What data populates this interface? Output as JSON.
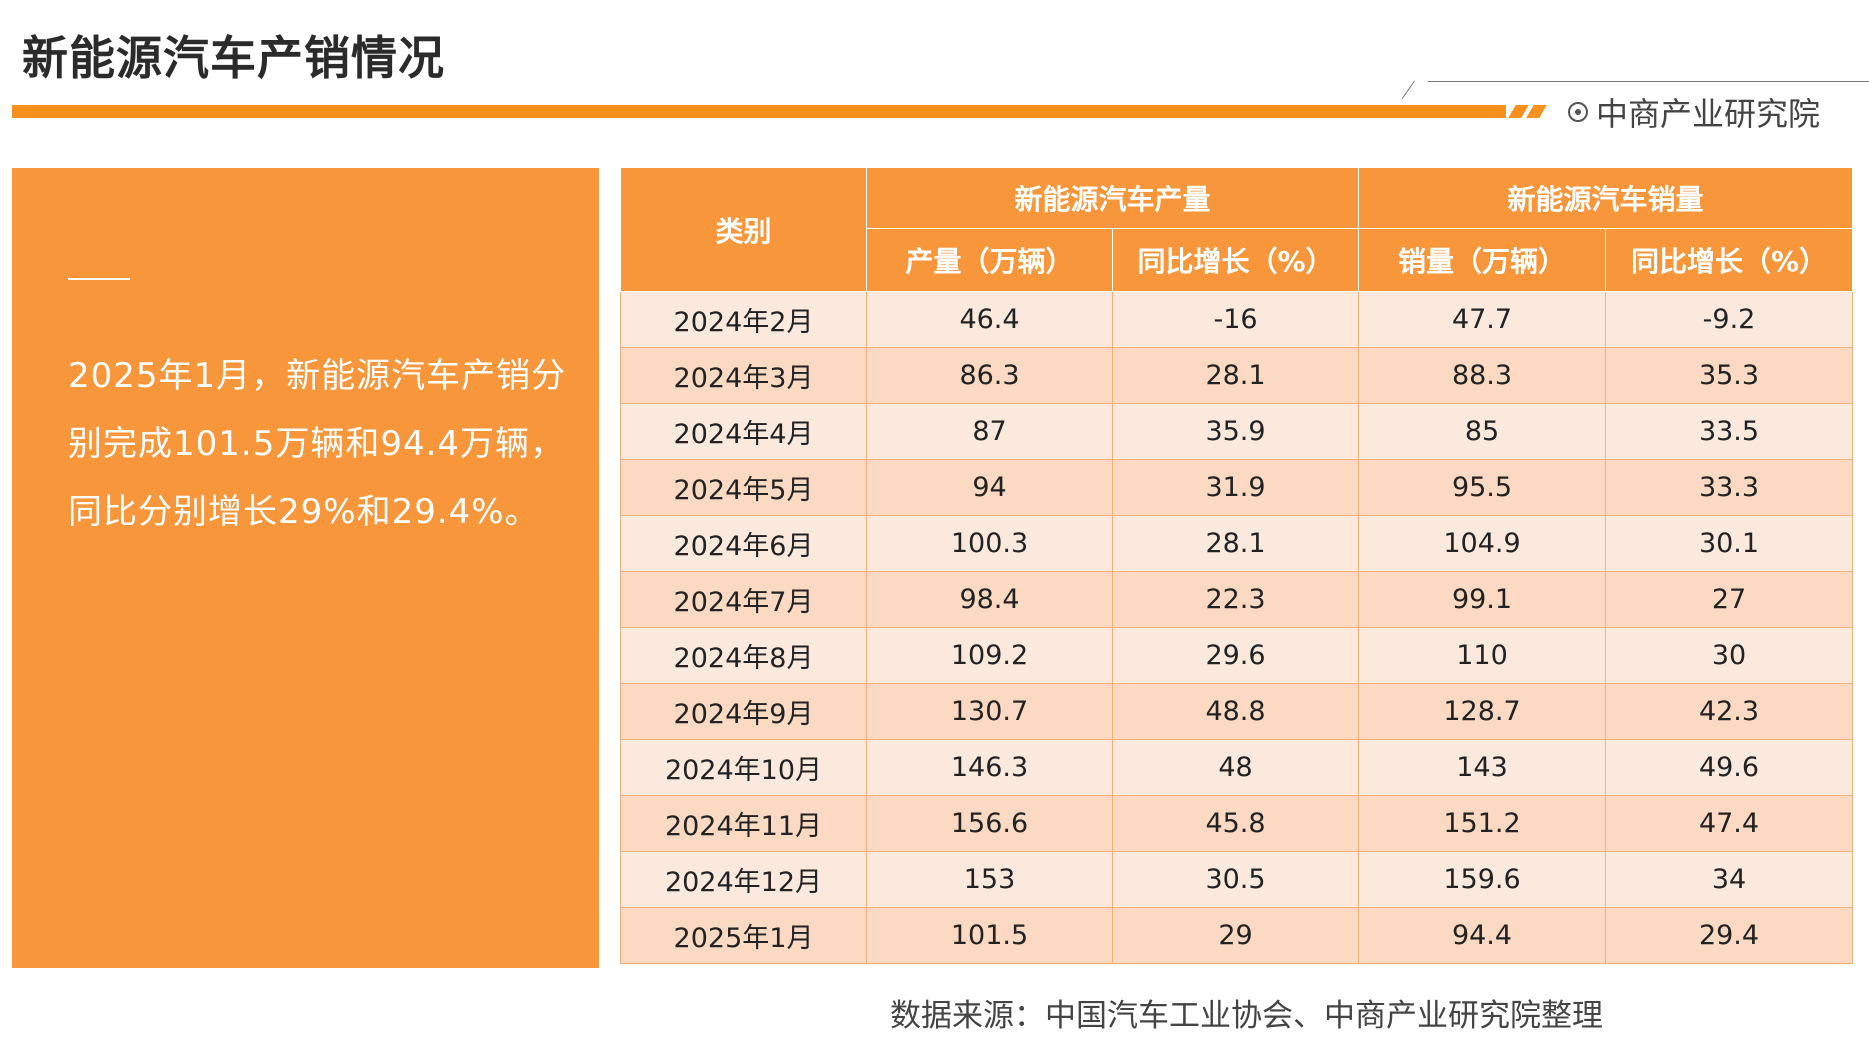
{
  "title": "新能源汽车产销情况",
  "brand": {
    "name": "中商产业研究院",
    "icon": "circle-dot-icon"
  },
  "colors": {
    "accent": "#f7911e",
    "panel": "#f7963a",
    "row_light": "#fce9de",
    "row_dark": "#fbd9c2"
  },
  "summary": "2025年1月，新能源汽车产销分别完成101.5万辆和94.4万辆，同比分别增长29%和29.4%。",
  "table": {
    "category_header": "类别",
    "production_header": "新能源汽车产量",
    "sales_header": "新能源汽车销量",
    "sub_headers": [
      "产量（万辆）",
      "同比增长（%）",
      "销量（万辆）",
      "同比增长（%）"
    ],
    "rows": [
      [
        "2024年2月",
        "46.4",
        "-16",
        "47.7",
        "-9.2"
      ],
      [
        "2024年3月",
        "86.3",
        "28.1",
        "88.3",
        "35.3"
      ],
      [
        "2024年4月",
        "87",
        "35.9",
        "85",
        "33.5"
      ],
      [
        "2024年5月",
        "94",
        "31.9",
        "95.5",
        "33.3"
      ],
      [
        "2024年6月",
        "100.3",
        "28.1",
        "104.9",
        "30.1"
      ],
      [
        "2024年7月",
        "98.4",
        "22.3",
        "99.1",
        "27"
      ],
      [
        "2024年8月",
        "109.2",
        "29.6",
        "110",
        "30"
      ],
      [
        "2024年9月",
        "130.7",
        "48.8",
        "128.7",
        "42.3"
      ],
      [
        "2024年10月",
        "146.3",
        "48",
        "143",
        "49.6"
      ],
      [
        "2024年11月",
        "156.6",
        "45.8",
        "151.2",
        "47.4"
      ],
      [
        "2024年12月",
        "153",
        "30.5",
        "159.6",
        "34"
      ],
      [
        "2025年1月",
        "101.5",
        "29",
        "94.4",
        "29.4"
      ]
    ]
  },
  "source": "数据来源：中国汽车工业协会、中商产业研究院整理"
}
